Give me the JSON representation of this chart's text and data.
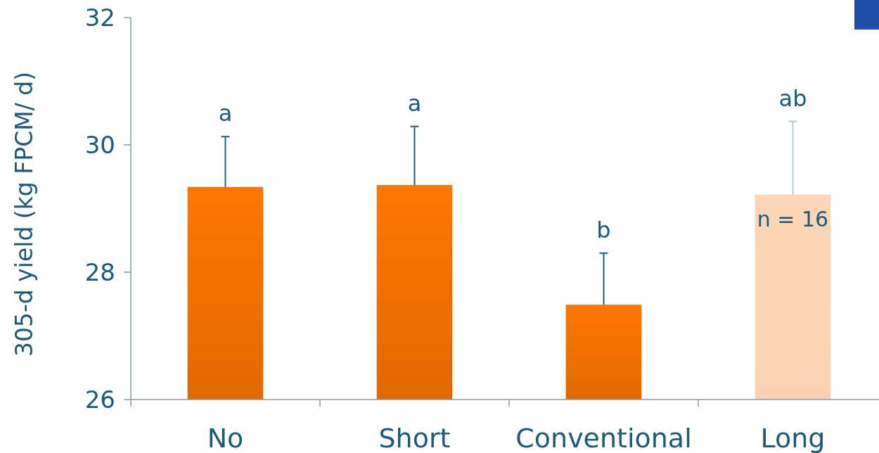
{
  "chart_data": {
    "type": "bar",
    "ylabel": "305-d yield (kg FPCM/ d)",
    "categories": [
      "No",
      "Short",
      "Conventional",
      "Long"
    ],
    "values": [
      29.34,
      29.37,
      27.49,
      29.22
    ],
    "colors": [
      "#ff7700",
      "#ff7700",
      "#ff7700",
      "#fcd6b6"
    ],
    "errors": [
      [
        29.34,
        30.13
      ],
      [
        29.37,
        30.29
      ],
      [
        27.49,
        28.3
      ],
      [
        29.22,
        30.37
      ]
    ],
    "ylim": [
      26,
      32
    ],
    "yticks": [
      26,
      28,
      30,
      32
    ],
    "annotations": [
      "a",
      "a",
      "b",
      "ab",
      "n = 16"
    ]
  }
}
